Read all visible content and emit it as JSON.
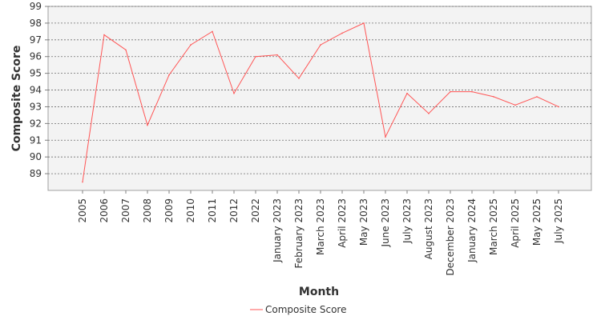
{
  "chart_data": {
    "type": "line",
    "title": "",
    "xlabel": "Month",
    "ylabel": "Composite Score",
    "ylim": [
      88.5,
      99
    ],
    "yticks": [
      89,
      90,
      91,
      92,
      93,
      94,
      95,
      96,
      97,
      98,
      99
    ],
    "grid": true,
    "legend_position": "bottom-center",
    "categories": [
      "2005",
      "2006",
      "2007",
      "2008",
      "2009",
      "2010",
      "2011",
      "2012",
      "2022",
      "January 2023",
      "February 2023",
      "March 2023",
      "April 2023",
      "May 2023",
      "June 2023",
      "July 2023",
      "August 2023",
      "December 2023",
      "January 2024",
      "March 2025",
      "April 2025",
      "May 2025",
      "July 2025"
    ],
    "series": [
      {
        "name": "Composite Score",
        "color": "#ff5555",
        "values": [
          88.5,
          97.3,
          96.4,
          91.9,
          94.9,
          96.7,
          97.5,
          93.8,
          96.0,
          96.1,
          94.7,
          96.7,
          97.4,
          98.0,
          91.2,
          93.8,
          92.6,
          93.9,
          93.9,
          93.6,
          93.1,
          93.6,
          93.0
        ]
      }
    ],
    "colors": {
      "plot_background": "#f3f3f3",
      "gridline": "#6e6e6e",
      "axis": "#808080"
    }
  }
}
